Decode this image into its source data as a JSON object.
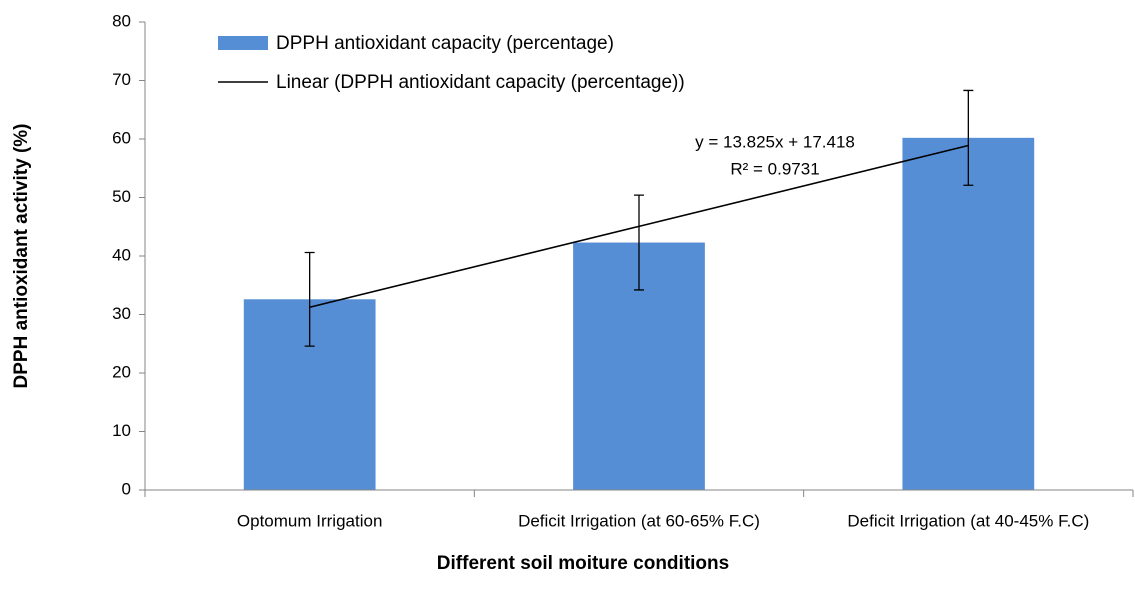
{
  "chart_data": {
    "type": "bar",
    "categories": [
      "Optomum Irrigation",
      "Deficit Irrigation (at 60-65% F.C)",
      "Deficit Irrigation (at 40-45% F.C)"
    ],
    "series": [
      {
        "name": "DPPH antioxidant capacity (percentage)",
        "color": "#558ed5",
        "values": [
          32.6,
          42.3,
          60.2
        ],
        "errors": [
          8.0,
          8.1,
          8.1
        ]
      },
      {
        "name": "Linear (DPPH antioxidant capacity (percentage))",
        "type": "line",
        "color": "#000000",
        "values": [
          31.243,
          45.068,
          58.893
        ]
      }
    ],
    "annotations": [
      "y = 13.825x + 17.418",
      "R² = 0.9731"
    ],
    "xlabel": "Different soil moiture conditions",
    "ylabel": "DPPH antioxidant activity (%)",
    "ylim": [
      0,
      80
    ],
    "yticks": [
      0,
      10,
      20,
      30,
      40,
      50,
      60,
      70,
      80
    ]
  }
}
